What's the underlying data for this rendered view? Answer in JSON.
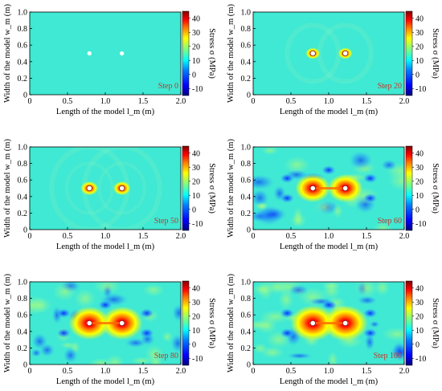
{
  "figure": {
    "panels": [
      {
        "step_label": "Step 0"
      },
      {
        "step_label": "Step 20"
      },
      {
        "step_label": "Step 50"
      },
      {
        "step_label": "Step 60"
      },
      {
        "step_label": "Step 80"
      },
      {
        "step_label": "Step 100"
      }
    ]
  },
  "chart_data": [
    {
      "type": "heatmap",
      "title": "",
      "step": "Step 0",
      "xlabel": "Length of the model  l_m  (m)",
      "ylabel": "Width of the model  w_m  (m)",
      "xlim": [
        0,
        2.0
      ],
      "ylim": [
        0,
        1.0
      ],
      "xticks": [
        "0",
        "0.5",
        "1.0",
        "1.5",
        "2.0"
      ],
      "yticks": [
        "0",
        "0.2",
        "0.4",
        "0.6",
        "0.8",
        "1.0"
      ],
      "colorbar": {
        "label": "Stress  σ  (MPa)",
        "ticks": [
          -10,
          0,
          10,
          20,
          30,
          40
        ],
        "range": [
          -15,
          45
        ]
      },
      "boreholes": [
        [
          0.79,
          0.5
        ],
        [
          1.22,
          0.5
        ]
      ],
      "intensity": 0
    },
    {
      "type": "heatmap",
      "title": "",
      "step": "Step 20",
      "xlabel": "Length of the model  l_m  (m)",
      "ylabel": "Width of the model  w_m  (m)",
      "xlim": [
        0,
        2.0
      ],
      "ylim": [
        0,
        1.0
      ],
      "xticks": [
        "0",
        "0.5",
        "1.0",
        "1.5",
        "2.0"
      ],
      "yticks": [
        "0",
        "0.2",
        "0.4",
        "0.6",
        "0.8",
        "1.0"
      ],
      "colorbar": {
        "label": "Stress  σ  (MPa)",
        "ticks": [
          -10,
          0,
          10,
          20,
          30,
          40
        ],
        "range": [
          -15,
          45
        ]
      },
      "boreholes": [
        [
          0.79,
          0.5
        ],
        [
          1.22,
          0.5
        ]
      ],
      "intensity": 1
    },
    {
      "type": "heatmap",
      "title": "",
      "step": "Step 50",
      "xlabel": "Length of the model  l_m  (m)",
      "ylabel": "Width of the model  w_m  (m)",
      "xlim": [
        0,
        2.0
      ],
      "ylim": [
        0,
        1.0
      ],
      "xticks": [
        "0",
        "0.5",
        "1.0",
        "1.5",
        "2.0"
      ],
      "yticks": [
        "0",
        "0.2",
        "0.4",
        "0.6",
        "0.8",
        "1.0"
      ],
      "colorbar": {
        "label": "Stress  σ  (MPa)",
        "ticks": [
          -10,
          0,
          10,
          20,
          30,
          40
        ],
        "range": [
          -15,
          45
        ]
      },
      "boreholes": [
        [
          0.79,
          0.5
        ],
        [
          1.22,
          0.5
        ]
      ],
      "intensity": 2
    },
    {
      "type": "heatmap",
      "title": "",
      "step": "Step 60",
      "xlabel": "Length of the model  l_m  (m)",
      "ylabel": "Width of the model  w_m  (m)",
      "xlim": [
        0,
        2.0
      ],
      "ylim": [
        0,
        1.0
      ],
      "xticks": [
        "0",
        "0.5",
        "1.0",
        "1.5",
        "2.0"
      ],
      "yticks": [
        "0",
        "0.2",
        "0.4",
        "0.6",
        "0.8",
        "1.0"
      ],
      "colorbar": {
        "label": "Stress  σ  (MPa)",
        "ticks": [
          -10,
          0,
          10,
          20,
          30,
          40
        ],
        "range": [
          -15,
          45
        ]
      },
      "boreholes": [
        [
          0.79,
          0.5
        ],
        [
          1.22,
          0.5
        ]
      ],
      "intensity": 3
    },
    {
      "type": "heatmap",
      "title": "",
      "step": "Step 80",
      "xlabel": "Length of the model  l_m  (m)",
      "ylabel": "Width of the model  w_m  (m)",
      "xlim": [
        0,
        2.0
      ],
      "ylim": [
        0,
        1.0
      ],
      "xticks": [
        "0",
        "0.5",
        "1.0",
        "1.5",
        "2.0"
      ],
      "yticks": [
        "0",
        "0.2",
        "0.4",
        "0.6",
        "0.8",
        "1.0"
      ],
      "colorbar": {
        "label": "Stress  σ  (MPa)",
        "ticks": [
          -10,
          0,
          10,
          20,
          30,
          40
        ],
        "range": [
          -15,
          45
        ]
      },
      "boreholes": [
        [
          0.79,
          0.5
        ],
        [
          1.22,
          0.5
        ]
      ],
      "intensity": 4
    },
    {
      "type": "heatmap",
      "title": "",
      "step": "Step 100",
      "xlabel": "Length of the model  l_m  (m)",
      "ylabel": "Width of the model  w_m  (m)",
      "xlim": [
        0,
        2.0
      ],
      "ylim": [
        0,
        1.0
      ],
      "xticks": [
        "0",
        "0.5",
        "1.0",
        "1.5",
        "2.0"
      ],
      "yticks": [
        "0",
        "0.2",
        "0.4",
        "0.6",
        "0.8",
        "1.0"
      ],
      "colorbar": {
        "label": "Stress  σ  (MPa)",
        "ticks": [
          -10,
          0,
          10,
          20,
          30,
          40
        ],
        "range": [
          -15,
          45
        ]
      },
      "boreholes": [
        [
          0.79,
          0.5
        ],
        [
          1.22,
          0.5
        ]
      ],
      "intensity": 5
    }
  ],
  "colors": {
    "background_cyan": "#3fe9d3",
    "step_label": "#c0392b",
    "colormap": [
      "#00007f",
      "#0000ff",
      "#007fff",
      "#00ffff",
      "#7fff7f",
      "#ffff00",
      "#ff7f00",
      "#ff0000",
      "#7f0000"
    ]
  }
}
